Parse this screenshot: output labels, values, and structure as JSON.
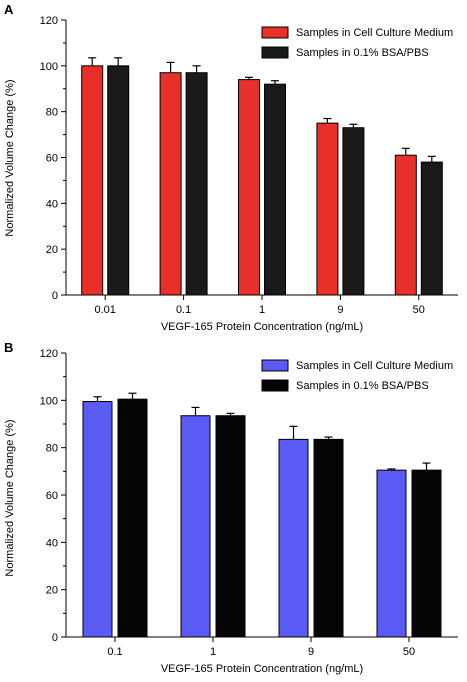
{
  "chart_data": [
    {
      "panel": "A",
      "type": "bar",
      "categories": [
        "0.01",
        "0.1",
        "1",
        "9",
        "50"
      ],
      "series": [
        {
          "name": "Samples in Cell Culture Medium",
          "color": "#e8302a",
          "values": [
            100,
            97,
            94,
            75,
            61
          ],
          "errors": [
            3.5,
            4.5,
            1,
            2,
            3
          ]
        },
        {
          "name": "Samples in 0.1% BSA/PBS",
          "color": "#1a1a1a",
          "values": [
            100,
            97,
            92,
            73,
            58
          ],
          "errors": [
            3.5,
            3,
            1.5,
            1.5,
            2.5
          ]
        }
      ],
      "xlabel": "VEGF-165 Protein Concentration (ng/mL)",
      "ylabel": "Normalized Volume Change (%)",
      "ylim": [
        0,
        120
      ],
      "yticks": [
        "0",
        "20",
        "40",
        "60",
        "80",
        "100",
        "120"
      ],
      "legend": "top-right",
      "grid": false
    },
    {
      "panel": "B",
      "type": "bar",
      "categories": [
        "0.1",
        "1",
        "9",
        "50"
      ],
      "series": [
        {
          "name": "Samples in Cell Culture Medium",
          "color": "#5a5af5",
          "values": [
            99.5,
            93.5,
            83.5,
            70.5
          ],
          "errors": [
            2,
            3.5,
            5.5,
            0.5
          ]
        },
        {
          "name": "Samples in 0.1% BSA/PBS",
          "color": "#050505",
          "values": [
            100.5,
            93.5,
            83.5,
            70.5
          ],
          "errors": [
            2.5,
            1,
            1,
            3
          ]
        }
      ],
      "xlabel": "VEGF-165 Protein Concentration (ng/mL)",
      "ylabel": "Normalized Volume Change (%)",
      "ylim": [
        0,
        120
      ],
      "yticks": [
        "0",
        "20",
        "40",
        "60",
        "80",
        "100",
        "120"
      ],
      "legend": "top-right",
      "grid": false
    }
  ]
}
